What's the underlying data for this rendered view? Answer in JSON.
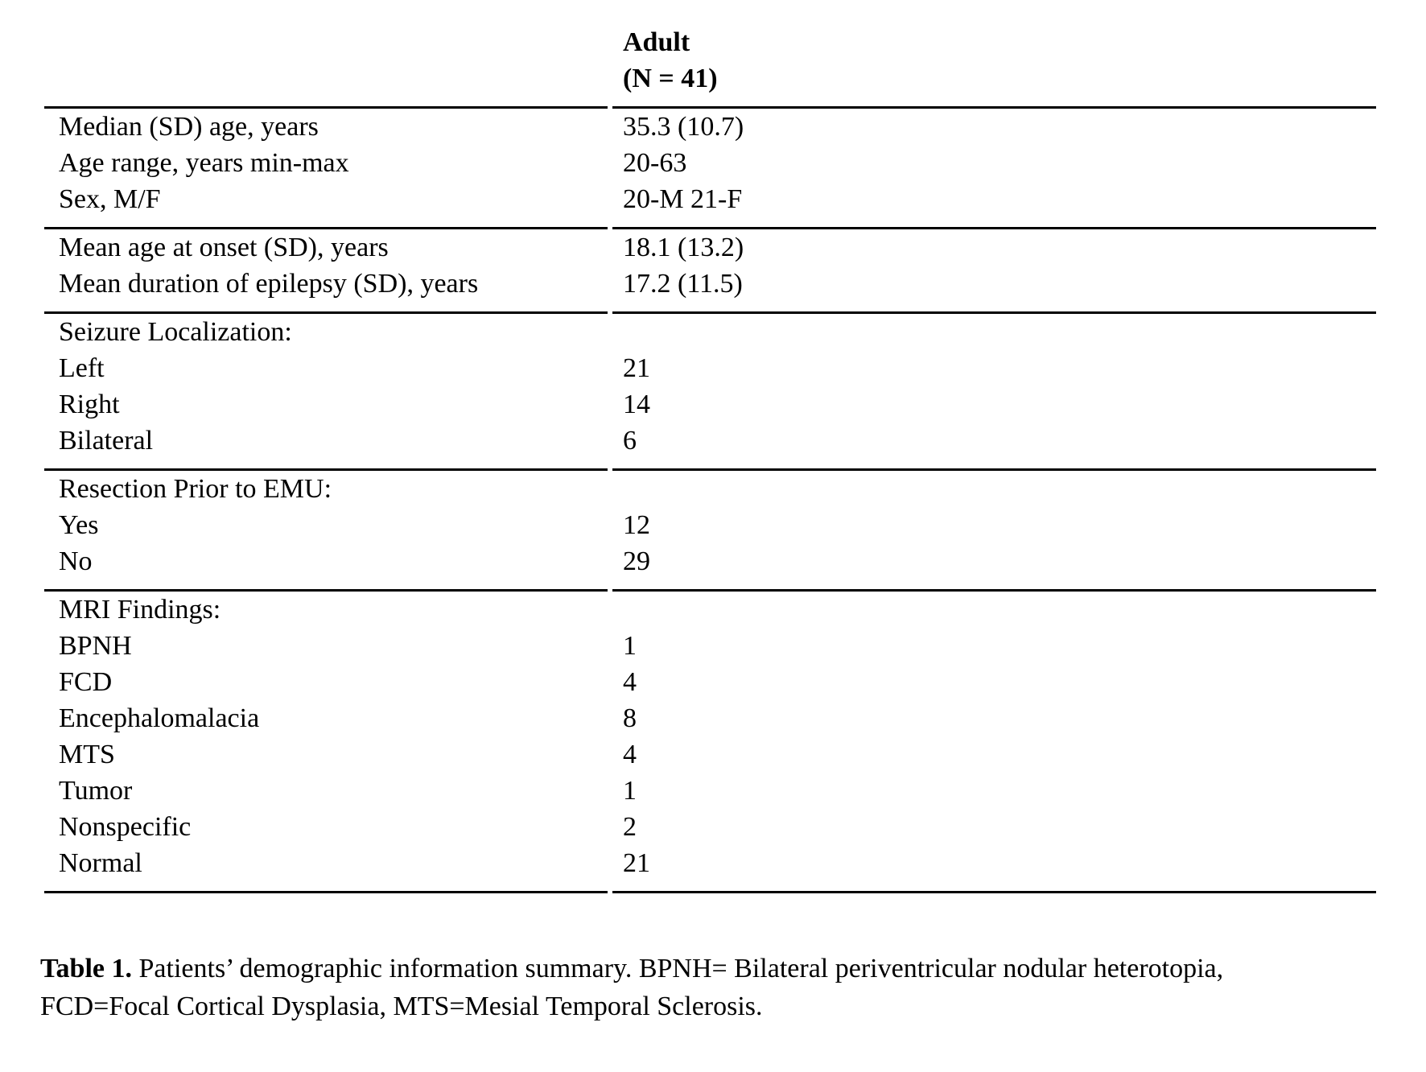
{
  "page": {
    "background": "#ffffff",
    "ink": "#000000"
  },
  "table": {
    "column_header": {
      "line1": "Adult",
      "line2": "(N = 41)"
    },
    "groups": [
      {
        "rows": [
          {
            "label": "Median (SD) age, years",
            "value": "35.3 (10.7)"
          },
          {
            "label": "Age range, years min-max",
            "value": "20-63"
          },
          {
            "label": "Sex, M/F",
            "value": "20-M 21-F"
          }
        ]
      },
      {
        "rows": [
          {
            "label": "Mean age at onset (SD), years",
            "value": "18.1 (13.2)"
          },
          {
            "label": "Mean duration of epilepsy (SD), years",
            "value": "17.2 (11.5)"
          }
        ]
      },
      {
        "rows": [
          {
            "label": "Seizure Localization:",
            "value": ""
          },
          {
            "label": "Left",
            "value": "21"
          },
          {
            "label": "Right",
            "value": "14"
          },
          {
            "label": "Bilateral",
            "value": "6"
          }
        ]
      },
      {
        "rows": [
          {
            "label": "Resection Prior to EMU:",
            "value": ""
          },
          {
            "label": "Yes",
            "value": "12"
          },
          {
            "label": "No",
            "value": "29"
          }
        ]
      },
      {
        "rows": [
          {
            "label": "MRI Findings:",
            "value": ""
          },
          {
            "label": "BPNH",
            "value": "1"
          },
          {
            "label": "FCD",
            "value": "4"
          },
          {
            "label": "Encephalomalacia",
            "value": "8"
          },
          {
            "label": "MTS",
            "value": "4"
          },
          {
            "label": "Tumor",
            "value": "1"
          },
          {
            "label": "Nonspecific",
            "value": "2"
          },
          {
            "label": "Normal",
            "value": "21"
          }
        ]
      }
    ]
  },
  "caption": {
    "label": "Table 1.",
    "text": "Patients’ demographic information summary. BPNH= Bilateral periventricular nodular heterotopia, FCD=Focal Cortical Dysplasia, MTS=Mesial Temporal Sclerosis."
  }
}
